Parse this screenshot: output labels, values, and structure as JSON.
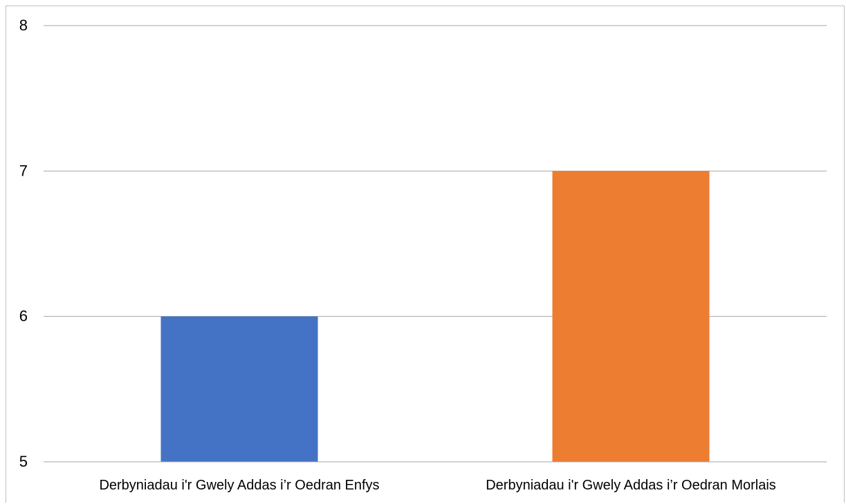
{
  "chart_data": {
    "type": "bar",
    "categories": [
      "Derbyniadau i'r Gwely Addas i’r Oedran Enfys",
      "Derbyniadau i'r Gwely Addas i’r Oedran Morlais"
    ],
    "values": [
      6,
      7
    ],
    "colors": [
      "#4472c4",
      "#ed7d31"
    ],
    "ylim": [
      5,
      8
    ],
    "yticks": [
      "5",
      "6",
      "7",
      "8"
    ],
    "grid": true,
    "title": "",
    "xlabel": "",
    "ylabel": ""
  }
}
